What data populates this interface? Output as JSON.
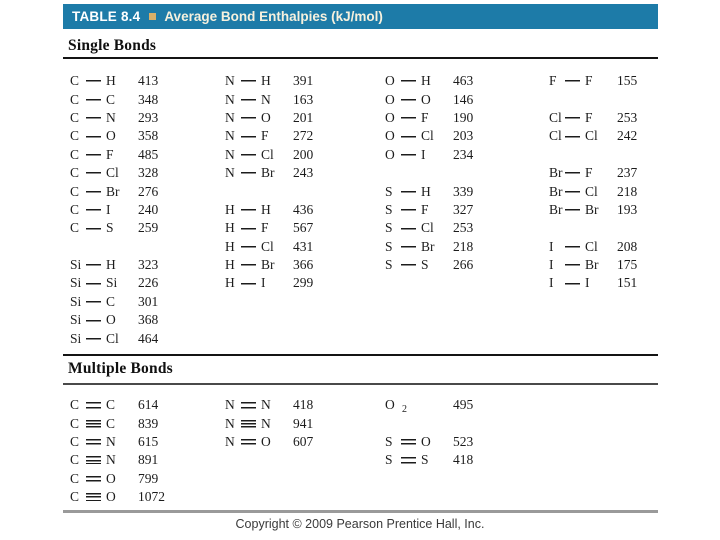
{
  "colors": {
    "header_bg": "#1d7ba8",
    "bullet": "#d8b069",
    "rule_dark": "#141414",
    "rule_mid": "#4a4a4a",
    "rule_gray": "#9a9a9a",
    "text": "#1c1c1c",
    "copyright_text": "#3a3a3a"
  },
  "header": {
    "table_label": "TABLE 8.4",
    "title": "Average Bond Enthalpies (kJ/mol)"
  },
  "sections": {
    "single": {
      "heading": "Single Bonds",
      "columns": [
        [
          {
            "a": "C",
            "t": "s",
            "b": "H",
            "v": 413
          },
          {
            "a": "C",
            "t": "s",
            "b": "C",
            "v": 348
          },
          {
            "a": "C",
            "t": "s",
            "b": "N",
            "v": 293
          },
          {
            "a": "C",
            "t": "s",
            "b": "O",
            "v": 358
          },
          {
            "a": "C",
            "t": "s",
            "b": "F",
            "v": 485
          },
          {
            "a": "C",
            "t": "s",
            "b": "Cl",
            "v": 328
          },
          {
            "a": "C",
            "t": "s",
            "b": "Br",
            "v": 276
          },
          {
            "a": "C",
            "t": "s",
            "b": "I",
            "v": 240
          },
          {
            "a": "C",
            "t": "s",
            "b": "S",
            "v": 259
          },
          null,
          {
            "a": "Si",
            "t": "s",
            "b": "H",
            "v": 323
          },
          {
            "a": "Si",
            "t": "s",
            "b": "Si",
            "v": 226
          },
          {
            "a": "Si",
            "t": "s",
            "b": "C",
            "v": 301
          },
          {
            "a": "Si",
            "t": "s",
            "b": "O",
            "v": 368
          },
          {
            "a": "Si",
            "t": "s",
            "b": "Cl",
            "v": 464
          }
        ],
        [
          {
            "a": "N",
            "t": "s",
            "b": "H",
            "v": 391
          },
          {
            "a": "N",
            "t": "s",
            "b": "N",
            "v": 163
          },
          {
            "a": "N",
            "t": "s",
            "b": "O",
            "v": 201
          },
          {
            "a": "N",
            "t": "s",
            "b": "F",
            "v": 272
          },
          {
            "a": "N",
            "t": "s",
            "b": "Cl",
            "v": 200
          },
          {
            "a": "N",
            "t": "s",
            "b": "Br",
            "v": 243
          },
          null,
          {
            "a": "H",
            "t": "s",
            "b": "H",
            "v": 436
          },
          {
            "a": "H",
            "t": "s",
            "b": "F",
            "v": 567
          },
          {
            "a": "H",
            "t": "s",
            "b": "Cl",
            "v": 431
          },
          {
            "a": "H",
            "t": "s",
            "b": "Br",
            "v": 366
          },
          {
            "a": "H",
            "t": "s",
            "b": "I",
            "v": 299
          },
          null,
          null,
          null
        ],
        [
          {
            "a": "O",
            "t": "s",
            "b": "H",
            "v": 463
          },
          {
            "a": "O",
            "t": "s",
            "b": "O",
            "v": 146
          },
          {
            "a": "O",
            "t": "s",
            "b": "F",
            "v": 190
          },
          {
            "a": "O",
            "t": "s",
            "b": "Cl",
            "v": 203
          },
          {
            "a": "O",
            "t": "s",
            "b": "I",
            "v": 234
          },
          null,
          {
            "a": "S",
            "t": "s",
            "b": "H",
            "v": 339
          },
          {
            "a": "S",
            "t": "s",
            "b": "F",
            "v": 327
          },
          {
            "a": "S",
            "t": "s",
            "b": "Cl",
            "v": 253
          },
          {
            "a": "S",
            "t": "s",
            "b": "Br",
            "v": 218
          },
          {
            "a": "S",
            "t": "s",
            "b": "S",
            "v": 266
          },
          null,
          null,
          null,
          null
        ],
        [
          {
            "a": "F",
            "t": "s",
            "b": "F",
            "v": 155
          },
          null,
          {
            "a": "Cl",
            "t": "s",
            "b": "F",
            "v": 253
          },
          {
            "a": "Cl",
            "t": "s",
            "b": "Cl",
            "v": 242
          },
          null,
          {
            "a": "Br",
            "t": "s",
            "b": "F",
            "v": 237
          },
          {
            "a": "Br",
            "t": "s",
            "b": "Cl",
            "v": 218
          },
          {
            "a": "Br",
            "t": "s",
            "b": "Br",
            "v": 193
          },
          null,
          {
            "a": "I",
            "t": "s",
            "b": "Cl",
            "v": 208
          },
          {
            "a": "I",
            "t": "s",
            "b": "Br",
            "v": 175
          },
          {
            "a": "I",
            "t": "s",
            "b": "I",
            "v": 151
          },
          null,
          null,
          null
        ]
      ]
    },
    "multiple": {
      "heading": "Multiple Bonds",
      "columns": [
        [
          {
            "a": "C",
            "t": "d",
            "b": "C",
            "v": 614
          },
          {
            "a": "C",
            "t": "t",
            "b": "C",
            "v": 839
          },
          {
            "a": "C",
            "t": "d",
            "b": "N",
            "v": 615
          },
          {
            "a": "C",
            "t": "t",
            "b": "N",
            "v": 891
          },
          {
            "a": "C",
            "t": "d",
            "b": "O",
            "v": 799
          },
          {
            "a": "C",
            "t": "t",
            "b": "O",
            "v": 1072
          }
        ],
        [
          {
            "a": "N",
            "t": "d",
            "b": "N",
            "v": 418
          },
          {
            "a": "N",
            "t": "t",
            "b": "N",
            "v": 941
          },
          {
            "a": "N",
            "t": "d",
            "b": "O",
            "v": 607
          },
          null,
          null,
          null
        ],
        [
          {
            "a": "O",
            "t": "sub",
            "b": "2",
            "v": 495
          },
          null,
          {
            "a": "S",
            "t": "d",
            "b": "O",
            "v": 523
          },
          {
            "a": "S",
            "t": "d",
            "b": "S",
            "v": 418
          },
          null,
          null
        ]
      ]
    }
  },
  "footer": {
    "copyright": "Copyright © 2009 Pearson Prentice Hall, Inc."
  }
}
